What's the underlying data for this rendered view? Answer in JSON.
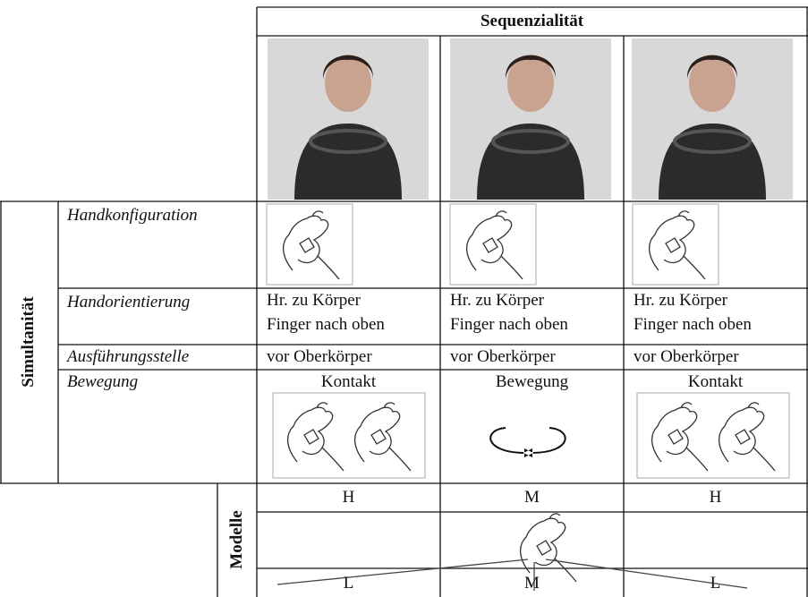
{
  "header": {
    "title": "Sequenzialität"
  },
  "row_group": {
    "label": "Simultanität"
  },
  "rows": [
    {
      "label": "Handkonfiguration"
    },
    {
      "label": "Handorientierung",
      "cells": [
        [
          "Hr. zu Körper",
          "Finger nach oben"
        ],
        [
          "Hr. zu Körper",
          "Finger nach oben"
        ],
        [
          "Hr. zu Körper",
          "Finger nach oben"
        ]
      ]
    },
    {
      "label": "Ausführungsstelle",
      "cells": [
        "vor Oberkörper",
        "vor Oberkörper",
        "vor Oberkörper"
      ]
    },
    {
      "label": "Bewegung",
      "cells": [
        "Kontakt",
        "Bewegung",
        "Kontakt"
      ]
    }
  ],
  "models": {
    "label": "Modelle",
    "top": [
      "H",
      "M",
      "H"
    ],
    "bottom": [
      "L",
      "M",
      "L"
    ]
  }
}
